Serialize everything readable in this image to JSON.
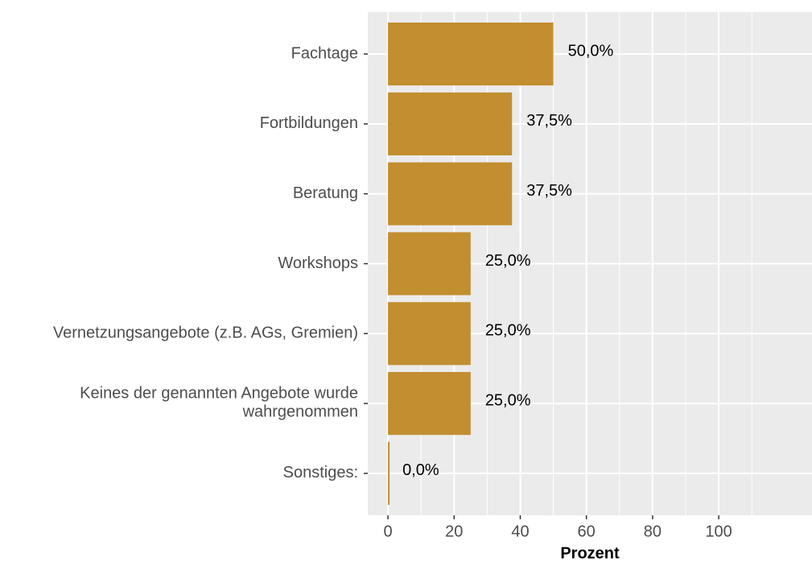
{
  "chart_data": {
    "type": "bar",
    "orientation": "horizontal",
    "x_label": "Prozent",
    "categories": [
      "Fachtage",
      "Fortbildungen",
      "Beratung",
      "Workshops",
      "Vernetzungsangebote (z.B. AGs, Gremien)",
      "Keines der genannten Angebote wurde\nwahrgenommen",
      "Sonstiges:"
    ],
    "values": [
      50,
      37.5,
      37.5,
      25,
      25,
      25,
      0
    ],
    "value_labels": [
      "50,0%",
      "37,5%",
      "37,5%",
      "25,0%",
      "25,0%",
      "25,0%",
      "0,0%"
    ],
    "color": "#C28E2F",
    "xlim": [
      -6.1,
      128.2
    ],
    "xticks": [
      0,
      20,
      40,
      60,
      80,
      100
    ],
    "grid": true
  }
}
